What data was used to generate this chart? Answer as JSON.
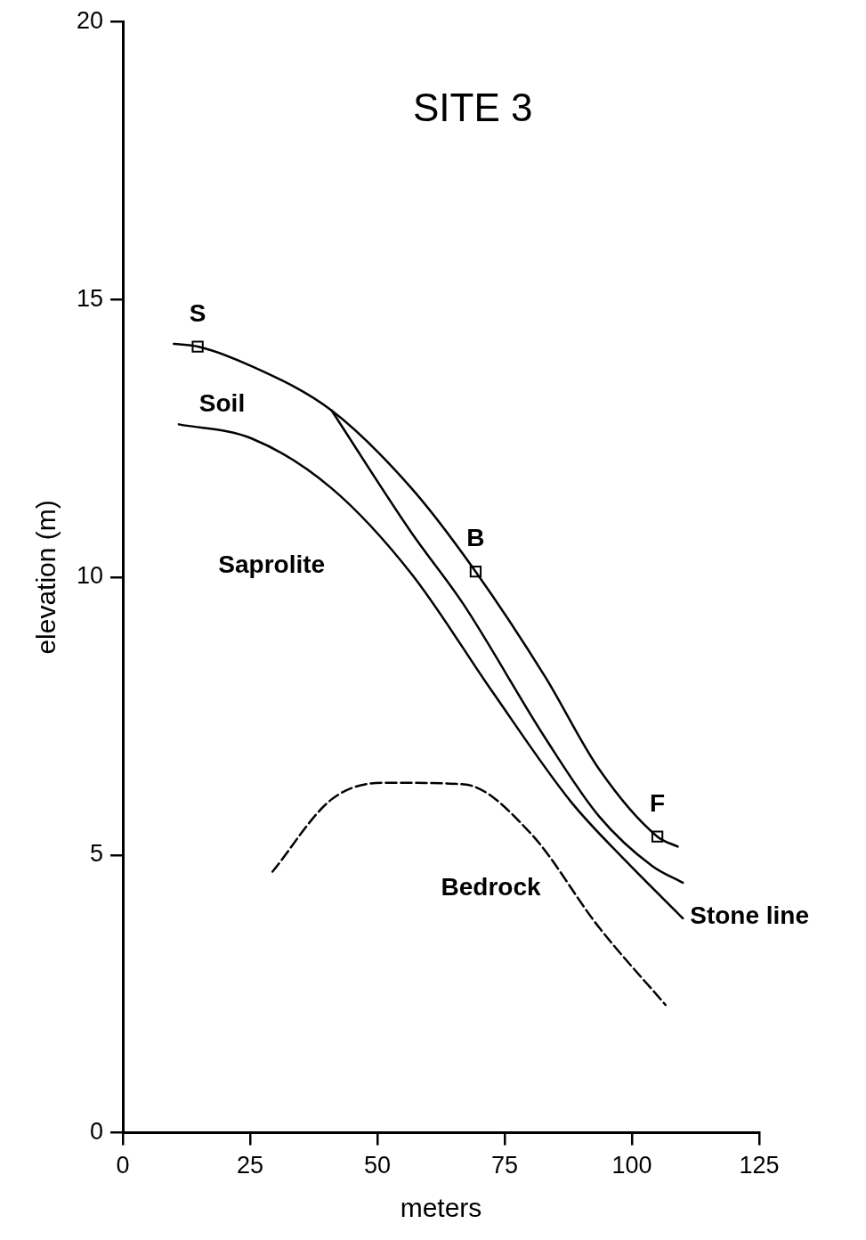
{
  "chart_data": {
    "type": "line",
    "title": "SITE 3",
    "xlabel": "meters",
    "ylabel": "elevation (m)",
    "xlim": [
      0,
      125
    ],
    "xticks": [
      0,
      25,
      50,
      75,
      100,
      125
    ],
    "ylim": [
      0,
      20
    ],
    "yticks": [
      0,
      5,
      10,
      15,
      20
    ],
    "grid": false,
    "legend": false,
    "marker": "none",
    "line_style": "solid",
    "series": [
      {
        "color": "#000000",
        "x": [
          10,
          14.7,
          25.2,
          41,
          56.7,
          69.3,
          83,
          93.5,
          105,
          109
        ],
        "values": [
          14.2,
          14.15,
          13.8,
          13.0,
          11.6,
          10.1,
          8.2,
          6.55,
          5.33,
          5.15
        ]
      },
      {
        "color": "#000000",
        "x": [
          41,
          56.7,
          67,
          83,
          93.5,
          104,
          110
        ],
        "values": [
          13.0,
          10.8,
          9.5,
          7.1,
          5.7,
          4.8,
          4.5
        ]
      },
      {
        "color": "#000000",
        "x": [
          11,
          25.2,
          41,
          56.7,
          72.5,
          88,
          98.7,
          110
        ],
        "values": [
          12.75,
          12.5,
          11.6,
          10.06,
          7.95,
          5.96,
          4.9,
          3.86
        ]
      },
      {
        "color": "#000000",
        "line_style": "dashed",
        "x": [
          29.4,
          41,
          51.5,
          67,
          80,
          93.5,
          106.6
        ],
        "values": [
          4.7,
          6.0,
          6.3,
          6.27,
          5.4,
          3.7,
          2.3
        ]
      },
      {
        "type": "scatter",
        "marker": "square",
        "color": "#000000",
        "x": [
          14.7,
          69.3,
          105
        ],
        "values": [
          14.15,
          10.1,
          5.33
        ]
      }
    ],
    "annotations": [
      {
        "text": "S",
        "x": 14.7,
        "y": 14.15
      },
      {
        "text": "B",
        "x": 69.3,
        "y": 10.1
      },
      {
        "text": "F",
        "x": 105,
        "y": 5.33
      },
      {
        "text": "Stone line",
        "x": 110,
        "y": 4.5
      },
      "Soil",
      "Saprolite",
      "Bedrock"
    ]
  }
}
